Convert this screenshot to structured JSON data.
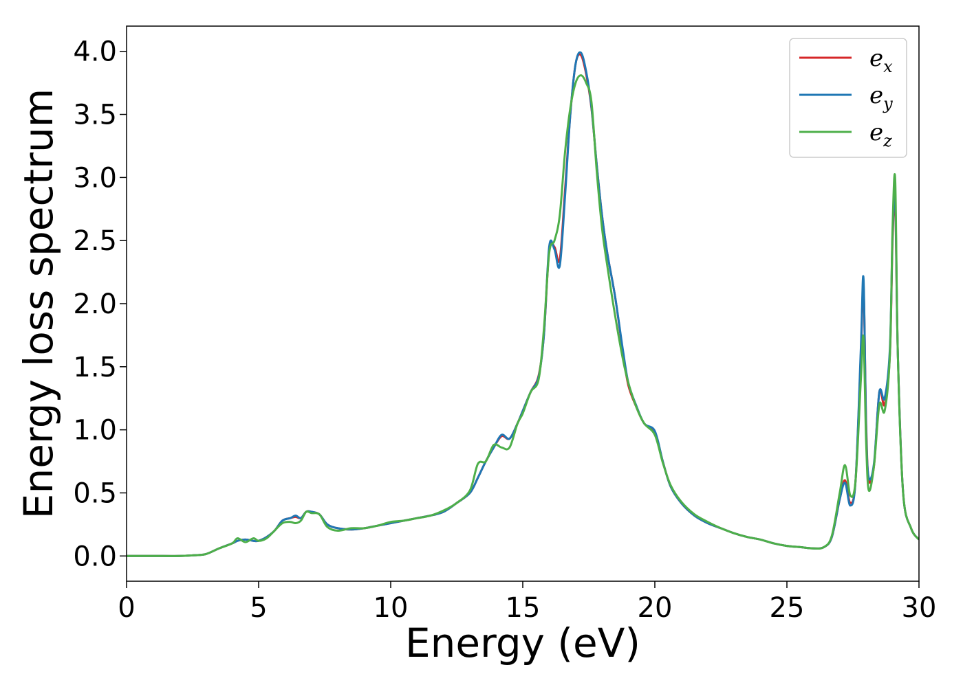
{
  "chart_data": {
    "type": "line",
    "title": "",
    "xlabel": "Energy (eV)",
    "ylabel": "Energy loss spectrum",
    "xlim": [
      0,
      30
    ],
    "ylim": [
      -0.2,
      4.2
    ],
    "xticks": [
      0,
      5,
      10,
      15,
      20,
      25,
      30
    ],
    "xtick_labels": [
      "0",
      "5",
      "10",
      "15",
      "20",
      "25",
      "30"
    ],
    "yticks": [
      0.0,
      0.5,
      1.0,
      1.5,
      2.0,
      2.5,
      3.0,
      3.5,
      4.0
    ],
    "ytick_labels": [
      "0.0",
      "0.5",
      "1.0",
      "1.5",
      "2.0",
      "2.5",
      "3.0",
      "3.5",
      "4.0"
    ],
    "grid": false,
    "legend_position": "top-right",
    "series": [
      {
        "name": "e_x",
        "label_base": "e",
        "label_sub": "x",
        "color": "#d62728",
        "x": [
          0,
          1,
          2,
          2.5,
          3,
          3.5,
          4,
          4.2,
          4.5,
          4.8,
          5,
          5.3,
          5.6,
          5.9,
          6.2,
          6.4,
          6.6,
          6.8,
          7,
          7.3,
          7.6,
          8,
          8.5,
          9,
          9.5,
          10,
          10.5,
          11,
          11.5,
          12,
          12.5,
          13,
          13.3,
          13.6,
          13.9,
          14.2,
          14.5,
          14.8,
          15,
          15.3,
          15.6,
          15.8,
          16,
          16.2,
          16.4,
          16.6,
          16.8,
          17,
          17.2,
          17.4,
          17.6,
          17.8,
          18,
          18.2,
          18.5,
          18.8,
          19,
          19.3,
          19.6,
          20,
          20.3,
          20.6,
          21,
          21.5,
          22,
          22.5,
          23,
          23.5,
          24,
          24.5,
          25,
          25.5,
          26,
          26.4,
          26.7,
          27,
          27.2,
          27.4,
          27.6,
          27.8,
          27.9,
          28,
          28.1,
          28.3,
          28.5,
          28.7,
          28.9,
          29,
          29.1,
          29.2,
          29.4,
          29.7,
          30
        ],
        "y": [
          0.0,
          0.0,
          0.0,
          0.005,
          0.015,
          0.06,
          0.1,
          0.12,
          0.13,
          0.12,
          0.12,
          0.15,
          0.2,
          0.28,
          0.3,
          0.31,
          0.3,
          0.35,
          0.35,
          0.33,
          0.25,
          0.22,
          0.21,
          0.22,
          0.24,
          0.26,
          0.28,
          0.3,
          0.32,
          0.35,
          0.42,
          0.5,
          0.62,
          0.75,
          0.86,
          0.95,
          0.93,
          1.05,
          1.15,
          1.3,
          1.43,
          1.75,
          2.42,
          2.45,
          2.35,
          2.9,
          3.5,
          3.9,
          3.97,
          3.82,
          3.55,
          3.1,
          2.7,
          2.4,
          2.05,
          1.6,
          1.35,
          1.18,
          1.05,
          0.98,
          0.75,
          0.55,
          0.42,
          0.32,
          0.26,
          0.22,
          0.18,
          0.15,
          0.13,
          0.1,
          0.08,
          0.07,
          0.06,
          0.07,
          0.15,
          0.45,
          0.6,
          0.42,
          0.6,
          1.6,
          2.15,
          1.05,
          0.6,
          0.72,
          1.3,
          1.2,
          1.6,
          2.5,
          2.8,
          1.6,
          0.5,
          0.22,
          0.13
        ]
      },
      {
        "name": "e_y",
        "label_base": "e",
        "label_sub": "y",
        "color": "#1f77b4",
        "x": [
          0,
          1,
          2,
          2.5,
          3,
          3.5,
          4,
          4.2,
          4.5,
          4.8,
          5,
          5.3,
          5.6,
          5.9,
          6.2,
          6.4,
          6.6,
          6.8,
          7,
          7.3,
          7.6,
          8,
          8.5,
          9,
          9.5,
          10,
          10.5,
          11,
          11.5,
          12,
          12.5,
          13,
          13.3,
          13.6,
          13.9,
          14.2,
          14.5,
          14.8,
          15,
          15.3,
          15.6,
          15.8,
          16,
          16.2,
          16.4,
          16.6,
          16.8,
          17,
          17.2,
          17.4,
          17.6,
          17.8,
          18,
          18.2,
          18.5,
          18.8,
          19,
          19.3,
          19.6,
          20,
          20.3,
          20.6,
          21,
          21.5,
          22,
          22.5,
          23,
          23.5,
          24,
          24.5,
          25,
          25.5,
          26,
          26.4,
          26.7,
          27,
          27.2,
          27.4,
          27.6,
          27.8,
          27.9,
          28,
          28.1,
          28.3,
          28.5,
          28.7,
          28.9,
          29,
          29.1,
          29.2,
          29.4,
          29.7,
          30
        ],
        "y": [
          0.0,
          0.0,
          0.0,
          0.005,
          0.015,
          0.06,
          0.1,
          0.12,
          0.13,
          0.12,
          0.12,
          0.15,
          0.2,
          0.28,
          0.3,
          0.32,
          0.3,
          0.35,
          0.35,
          0.33,
          0.25,
          0.22,
          0.21,
          0.22,
          0.24,
          0.26,
          0.28,
          0.3,
          0.32,
          0.35,
          0.42,
          0.5,
          0.62,
          0.75,
          0.86,
          0.96,
          0.93,
          1.05,
          1.15,
          1.3,
          1.42,
          1.75,
          2.45,
          2.43,
          2.3,
          2.85,
          3.5,
          3.9,
          3.99,
          3.84,
          3.56,
          3.1,
          2.7,
          2.4,
          2.05,
          1.62,
          1.37,
          1.19,
          1.05,
          0.99,
          0.75,
          0.55,
          0.42,
          0.32,
          0.26,
          0.22,
          0.18,
          0.15,
          0.13,
          0.1,
          0.08,
          0.07,
          0.06,
          0.07,
          0.15,
          0.45,
          0.58,
          0.4,
          0.6,
          1.65,
          2.2,
          1.0,
          0.62,
          0.74,
          1.3,
          1.25,
          1.65,
          2.55,
          2.85,
          1.6,
          0.5,
          0.22,
          0.13
        ]
      },
      {
        "name": "e_z",
        "label_base": "e",
        "label_sub": "z",
        "color": "#4daf4a",
        "x": [
          0,
          1,
          2,
          2.5,
          3,
          3.5,
          4,
          4.2,
          4.5,
          4.8,
          5,
          5.3,
          5.6,
          5.9,
          6.2,
          6.4,
          6.6,
          6.8,
          7,
          7.3,
          7.6,
          8,
          8.5,
          9,
          9.5,
          10,
          10.5,
          11,
          11.5,
          12,
          12.5,
          13,
          13.3,
          13.6,
          13.9,
          14.2,
          14.5,
          14.8,
          15,
          15.3,
          15.6,
          15.8,
          16,
          16.2,
          16.4,
          16.6,
          16.8,
          17,
          17.2,
          17.4,
          17.6,
          17.8,
          18,
          18.2,
          18.5,
          18.8,
          19,
          19.3,
          19.6,
          20,
          20.3,
          20.6,
          21,
          21.5,
          22,
          22.5,
          23,
          23.5,
          24,
          24.5,
          25,
          25.5,
          26,
          26.4,
          26.7,
          27,
          27.2,
          27.4,
          27.6,
          27.8,
          27.9,
          28,
          28.1,
          28.3,
          28.5,
          28.7,
          28.9,
          29,
          29.1,
          29.2,
          29.4,
          29.7,
          30
        ],
        "y": [
          0.0,
          0.0,
          0.0,
          0.005,
          0.015,
          0.06,
          0.1,
          0.14,
          0.11,
          0.14,
          0.12,
          0.14,
          0.2,
          0.26,
          0.27,
          0.26,
          0.28,
          0.35,
          0.34,
          0.33,
          0.23,
          0.2,
          0.22,
          0.22,
          0.24,
          0.27,
          0.28,
          0.3,
          0.32,
          0.36,
          0.42,
          0.52,
          0.73,
          0.75,
          0.88,
          0.86,
          0.86,
          1.05,
          1.13,
          1.3,
          1.4,
          1.8,
          2.4,
          2.5,
          2.7,
          3.2,
          3.55,
          3.75,
          3.81,
          3.75,
          3.6,
          3.05,
          2.6,
          2.3,
          1.9,
          1.55,
          1.37,
          1.18,
          1.05,
          0.96,
          0.74,
          0.56,
          0.43,
          0.33,
          0.27,
          0.22,
          0.18,
          0.15,
          0.13,
          0.1,
          0.08,
          0.07,
          0.06,
          0.07,
          0.16,
          0.5,
          0.72,
          0.48,
          0.6,
          1.4,
          1.73,
          0.9,
          0.52,
          0.72,
          1.2,
          1.15,
          1.6,
          2.6,
          2.98,
          1.6,
          0.5,
          0.22,
          0.13
        ]
      }
    ]
  }
}
